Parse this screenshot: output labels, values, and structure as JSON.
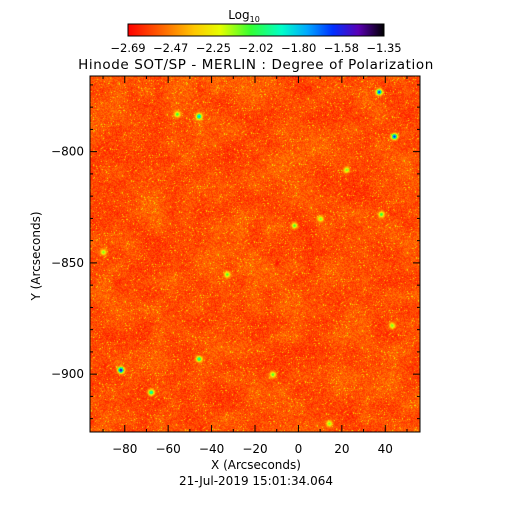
{
  "chart_data": {
    "type": "heatmap",
    "title": "Hinode SOT/SP - MERLIN : Degree of Polarization",
    "xlabel": "X (Arcseconds)",
    "ylabel": "Y (Arcseconds)",
    "timestamp": "21-Jul-2019 15:01:34.064",
    "colorbar": {
      "label_base": "Log",
      "label_sub": "10",
      "ticks": [
        "-2.69",
        "-2.47",
        "-2.25",
        "-2.02",
        "-1.80",
        "-1.58",
        "-1.35"
      ],
      "range": [
        -2.69,
        -1.35
      ]
    },
    "xlim": [
      -96,
      56
    ],
    "ylim": [
      -926,
      -766
    ],
    "xticks": [
      {
        "value": -80,
        "label": "-80"
      },
      {
        "value": -60,
        "label": "-60"
      },
      {
        "value": -40,
        "label": "-40"
      },
      {
        "value": -20,
        "label": "-20"
      },
      {
        "value": 0,
        "label": "0"
      },
      {
        "value": 20,
        "label": "20"
      },
      {
        "value": 40,
        "label": "40"
      }
    ],
    "yticks": [
      {
        "value": -800,
        "label": "-800"
      },
      {
        "value": -850,
        "label": "-850"
      },
      {
        "value": -900,
        "label": "-900"
      }
    ],
    "field": {
      "typical_value": -2.55,
      "spread": 0.06,
      "features": [
        {
          "x": -10,
          "y": -850,
          "value": -2.66
        },
        {
          "x": -56,
          "y": -783,
          "value": -2.02
        },
        {
          "x": -82,
          "y": -898,
          "value": -1.45
        },
        {
          "x": 37,
          "y": -773,
          "value": -1.58
        },
        {
          "x": 44,
          "y": -793,
          "value": -1.55
        },
        {
          "x": -46,
          "y": -784,
          "value": -1.75
        },
        {
          "x": 38,
          "y": -828,
          "value": -2.0
        },
        {
          "x": -2,
          "y": -833,
          "value": -2.05
        },
        {
          "x": -46,
          "y": -893,
          "value": -1.9
        },
        {
          "x": 10,
          "y": -830,
          "value": -2.1
        },
        {
          "x": 22,
          "y": -808,
          "value": -2.1
        },
        {
          "x": -12,
          "y": -900,
          "value": -2.05
        },
        {
          "x": -33,
          "y": -855,
          "value": -2.05
        },
        {
          "x": -68,
          "y": -908,
          "value": -1.85
        },
        {
          "x": 43,
          "y": -878,
          "value": -2.1
        },
        {
          "x": 14,
          "y": -922,
          "value": -2.1
        },
        {
          "x": -90,
          "y": -845,
          "value": -2.1
        }
      ]
    }
  }
}
